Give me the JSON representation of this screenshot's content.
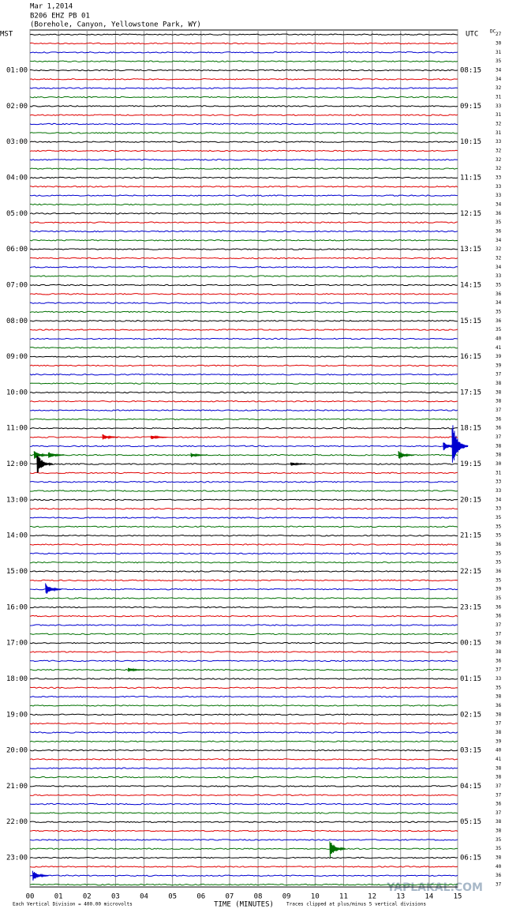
{
  "chart_data": {
    "type": "helicorder",
    "title_lines": [
      "Mar 1,2014",
      "B206 EHZ PB 01",
      "(Borehole, Canyon, Yellowstone Park, WY)"
    ],
    "left_header": "MST",
    "right_header": "UTC",
    "dc_header": "DC",
    "left_labels": [
      "01:00",
      "02:00",
      "03:00",
      "04:00",
      "05:00",
      "06:00",
      "07:00",
      "08:00",
      "09:00",
      "10:00",
      "11:00",
      "12:00",
      "13:00",
      "14:00",
      "15:00",
      "16:00",
      "17:00",
      "18:00",
      "19:00",
      "20:00",
      "21:00",
      "22:00",
      "23:00"
    ],
    "right_labels": [
      "08:15",
      "09:15",
      "10:15",
      "11:15",
      "12:15",
      "13:15",
      "14:15",
      "15:15",
      "16:15",
      "17:15",
      "18:15",
      "19:15",
      "20:15",
      "21:15",
      "22:15",
      "23:15",
      "00:15",
      "01:15",
      "02:15",
      "03:15",
      "04:15",
      "05:15",
      "06:15"
    ],
    "trace_colors": [
      "#000000",
      "#e00000",
      "#0000d0",
      "#007000"
    ],
    "dc_offsets": [
      27,
      30,
      31,
      35,
      34,
      34,
      32,
      31,
      33,
      31,
      32,
      31,
      33,
      32,
      32,
      32,
      33,
      33,
      33,
      34,
      36,
      35,
      36,
      34,
      32,
      32,
      34,
      33,
      35,
      36,
      34,
      35,
      36,
      35,
      40,
      41,
      39,
      39,
      37,
      38,
      38,
      38,
      37,
      36,
      36,
      37,
      38,
      38,
      30,
      31,
      33,
      33,
      34,
      33,
      35,
      35,
      35,
      36,
      35,
      35,
      36,
      35,
      39,
      35,
      36,
      36,
      37,
      37,
      38,
      38,
      36,
      37,
      33,
      35,
      38,
      36,
      38,
      37,
      38,
      39,
      40,
      41,
      38,
      38,
      37,
      37,
      36,
      37,
      38,
      38,
      35,
      35,
      38,
      40,
      36,
      37
    ],
    "events": [
      {
        "trace": 46,
        "minute": 14.86,
        "amplitude": 32
      },
      {
        "trace": 46,
        "minute": 14.55,
        "amplitude": 6
      },
      {
        "trace": 45,
        "minute": 2.6,
        "amplitude": 4
      },
      {
        "trace": 45,
        "minute": 4.3,
        "amplitude": 3
      },
      {
        "trace": 47,
        "minute": 0.2,
        "amplitude": 6
      },
      {
        "trace": 47,
        "minute": 0.7,
        "amplitude": 5
      },
      {
        "trace": 47,
        "minute": 5.7,
        "amplitude": 3
      },
      {
        "trace": 47,
        "minute": 12.98,
        "amplitude": 6
      },
      {
        "trace": 48,
        "minute": 0.3,
        "amplitude": 14
      },
      {
        "trace": 48,
        "minute": 9.2,
        "amplitude": 3
      },
      {
        "trace": 62,
        "minute": 0.6,
        "amplitude": 8
      },
      {
        "trace": 91,
        "minute": 10.57,
        "amplitude": 12
      },
      {
        "trace": 94,
        "minute": 0.15,
        "amplitude": 7
      },
      {
        "trace": 71,
        "minute": 3.5,
        "amplitude": 3
      }
    ],
    "xlabel": "TIME (MINUTES)",
    "xlim": [
      0,
      15
    ],
    "xticks": [
      {
        "value": 0,
        "label": "00"
      },
      {
        "value": 1,
        "label": "01"
      },
      {
        "value": 2,
        "label": "02"
      },
      {
        "value": 3,
        "label": "03"
      },
      {
        "value": 4,
        "label": "04"
      },
      {
        "value": 5,
        "label": "05"
      },
      {
        "value": 6,
        "label": "06"
      },
      {
        "value": 7,
        "label": "07"
      },
      {
        "value": 8,
        "label": "08"
      },
      {
        "value": 9,
        "label": "09"
      },
      {
        "value": 10,
        "label": "10"
      },
      {
        "value": 11,
        "label": "11"
      },
      {
        "value": 12,
        "label": "12"
      },
      {
        "value": 13,
        "label": "13"
      },
      {
        "value": 14,
        "label": "14"
      },
      {
        "value": 15,
        "label": "15"
      }
    ],
    "footer_left": "Each Vertical Division = 400.00 microvolts",
    "footer_right": "Traces clipped at plus/minus 5 vertical divisions",
    "watermark": "YAPLAKAL.COM"
  }
}
